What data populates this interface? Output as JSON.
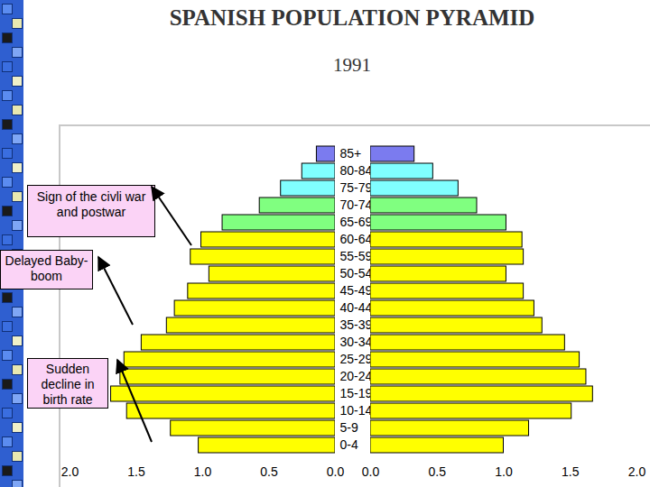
{
  "chart_data": {
    "type": "bar",
    "orientation": "horizontal",
    "title": "SPANISH POPULATION PYRAMID",
    "subtitle": "1991",
    "categories": [
      "85+",
      "80-84",
      "75-79",
      "70-74",
      "65-69",
      "60-64",
      "55-59",
      "50-54",
      "45-49",
      "40-44",
      "35-39",
      "30-34",
      "25-29",
      "20-24",
      "15-19",
      "10-14",
      "5-9",
      "0-4"
    ],
    "series": [
      {
        "values": [
          0.14,
          0.25,
          0.41,
          0.57,
          0.85,
          1.01,
          1.09,
          0.95,
          1.11,
          1.21,
          1.27,
          1.46,
          1.59,
          1.62,
          1.69,
          1.57,
          1.24,
          1.03
        ],
        "colors": [
          "#7b7bef",
          "#80ffff",
          "#80ffff",
          "#80ff80",
          "#80ff80",
          "#ffff00",
          "#ffff00",
          "#ffff00",
          "#ffff00",
          "#ffff00",
          "#ffff00",
          "#ffff00",
          "#ffff00",
          "#ffff00",
          "#ffff00",
          "#ffff00",
          "#ffff00",
          "#ffff00"
        ]
      },
      {
        "values": [
          0.33,
          0.47,
          0.66,
          0.8,
          1.02,
          1.14,
          1.15,
          1.02,
          1.15,
          1.23,
          1.29,
          1.46,
          1.57,
          1.62,
          1.67,
          1.51,
          1.19,
          1.0
        ],
        "colors": [
          "#7b7bef",
          "#80ffff",
          "#80ffff",
          "#80ff80",
          "#80ff80",
          "#ffff00",
          "#ffff00",
          "#ffff00",
          "#ffff00",
          "#ffff00",
          "#ffff00",
          "#ffff00",
          "#ffff00",
          "#ffff00",
          "#ffff00",
          "#ffff00",
          "#ffff00",
          "#ffff00"
        ]
      }
    ],
    "xlim": [
      0,
      2
    ],
    "xticks": [
      {
        "value": 0,
        "label": "0.0"
      },
      {
        "value": 0.5,
        "label": "0.5"
      },
      {
        "value": 1,
        "label": "1.0"
      },
      {
        "value": 1.5,
        "label": "1.5"
      },
      {
        "value": 2,
        "label": "2.0"
      }
    ],
    "annotations": [
      "Sign of the civli war and postwar",
      "Delayed Baby-boom",
      "Sudden decline in birth rate"
    ]
  }
}
